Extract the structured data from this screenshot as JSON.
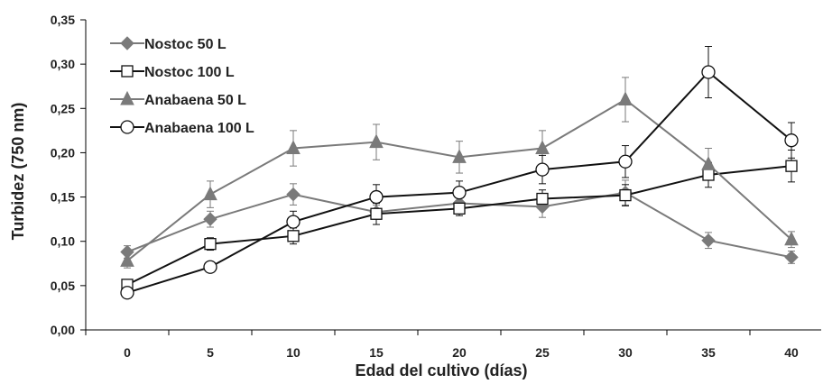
{
  "chart_data": {
    "type": "line",
    "xlabel": "Edad del cultivo (días)",
    "ylabel": "Turbidez (750 nm)",
    "x": [
      0,
      5,
      10,
      15,
      20,
      25,
      30,
      35,
      40
    ],
    "x_tick_labels": [
      "0",
      "5",
      "10",
      "15",
      "20",
      "25",
      "30",
      "35",
      "40"
    ],
    "ylim": [
      0,
      0.35
    ],
    "y_ticks": [
      0,
      0.05,
      0.1,
      0.15,
      0.2,
      0.25,
      0.3,
      0.35
    ],
    "y_tick_labels": [
      "0,00",
      "0,05",
      "0,10",
      "0,15",
      "0,20",
      "0,25",
      "0,30",
      "0,35"
    ],
    "grid": false,
    "legend_position": "top-left",
    "series": [
      {
        "name": "Nostoc 50 L",
        "marker": "diamond-filled",
        "color": "#7a7a7a",
        "values": [
          0.088,
          0.125,
          0.153,
          0.133,
          0.143,
          0.139,
          0.155,
          0.101,
          0.082
        ],
        "errors": [
          0.007,
          0.009,
          0.012,
          0.008,
          0.009,
          0.012,
          0.014,
          0.009,
          0.007
        ]
      },
      {
        "name": "Nostoc 100 L",
        "marker": "square-open",
        "color": "#111111",
        "values": [
          0.051,
          0.097,
          0.106,
          0.131,
          0.137,
          0.148,
          0.152,
          0.175,
          0.185
        ],
        "errors": [
          0.005,
          0.007,
          0.009,
          0.012,
          0.008,
          0.01,
          0.012,
          0.014,
          0.018
        ]
      },
      {
        "name": "Anabaena 50 L",
        "marker": "triangle-filled",
        "color": "#7a7a7a",
        "values": [
          0.078,
          0.153,
          0.205,
          0.212,
          0.195,
          0.205,
          0.26,
          0.187,
          0.102
        ],
        "errors": [
          0.008,
          0.015,
          0.02,
          0.02,
          0.018,
          0.02,
          0.025,
          0.018,
          0.009
        ]
      },
      {
        "name": "Anabaena 100 L",
        "marker": "circle-open",
        "color": "#111111",
        "values": [
          0.042,
          0.071,
          0.122,
          0.15,
          0.155,
          0.181,
          0.19,
          0.291,
          0.214
        ],
        "errors": [
          0.004,
          0.005,
          0.012,
          0.014,
          0.013,
          0.016,
          0.018,
          0.029,
          0.02
        ]
      }
    ]
  }
}
